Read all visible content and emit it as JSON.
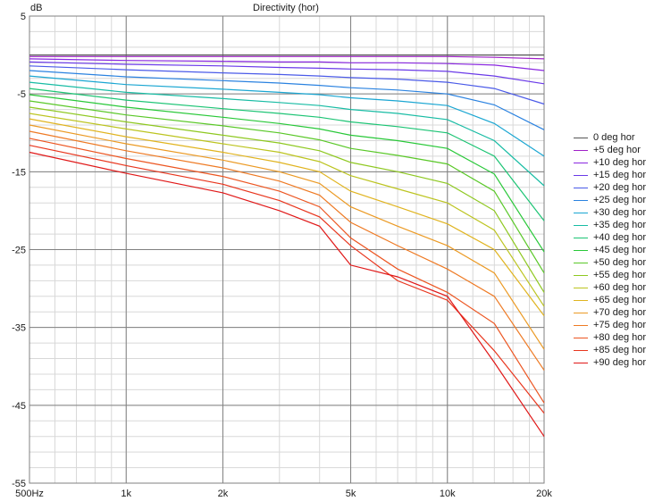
{
  "chart_data": {
    "type": "line",
    "title": "Directivity (hor)",
    "ylabel": "dB",
    "ylim": [
      -55,
      5
    ],
    "xlim": [
      500,
      20000
    ],
    "x_scale": "log",
    "y_ticks": [
      5,
      -5,
      -15,
      -25,
      -35,
      -45,
      -55
    ],
    "y_tick_labels": [
      "5",
      "-5",
      "-15",
      "-25",
      "-35",
      "-45",
      "-55"
    ],
    "x_ticks": [
      500,
      1000,
      2000,
      5000,
      10000,
      20000
    ],
    "x_tick_labels": [
      "500Hz",
      "1k",
      "2k",
      "5k",
      "10k",
      "20k"
    ],
    "grid": true,
    "legend_position": "right",
    "x": [
      500,
      1000,
      2000,
      3000,
      4000,
      5000,
      7000,
      10000,
      14000,
      20000
    ],
    "series": [
      {
        "name": "0 deg hor",
        "color": "#555555",
        "values": [
          0,
          0,
          0,
          0,
          0,
          0,
          0,
          0,
          0,
          0
        ]
      },
      {
        "name": "+5 deg hor",
        "color": "#a020c8",
        "values": [
          -0.2,
          -0.2,
          -0.2,
          -0.2,
          -0.2,
          -0.2,
          -0.2,
          -0.2,
          -0.3,
          -0.5
        ]
      },
      {
        "name": "+10 deg hor",
        "color": "#8a28e0",
        "values": [
          -0.5,
          -0.7,
          -0.8,
          -0.9,
          -0.9,
          -1.0,
          -1.0,
          -1.1,
          -1.3,
          -2.0
        ]
      },
      {
        "name": "+15 deg hor",
        "color": "#6a3ae8",
        "values": [
          -0.9,
          -1.2,
          -1.4,
          -1.6,
          -1.7,
          -1.8,
          -1.9,
          -2.1,
          -2.7,
          -3.7
        ]
      },
      {
        "name": "+20 deg hor",
        "color": "#4a5ae8",
        "values": [
          -1.4,
          -1.9,
          -2.3,
          -2.5,
          -2.7,
          -2.9,
          -3.1,
          -3.5,
          -4.3,
          -6.3
        ]
      },
      {
        "name": "+25 deg hor",
        "color": "#2a82e0",
        "values": [
          -2.0,
          -2.8,
          -3.3,
          -3.6,
          -3.9,
          -4.2,
          -4.5,
          -5.0,
          -6.4,
          -9.6
        ]
      },
      {
        "name": "+30 deg hor",
        "color": "#1aa6d2",
        "values": [
          -2.7,
          -3.8,
          -4.4,
          -4.8,
          -5.1,
          -5.5,
          -5.9,
          -6.5,
          -8.8,
          -13.0
        ]
      },
      {
        "name": "+35 deg hor",
        "color": "#18bca4",
        "values": [
          -3.5,
          -4.8,
          -5.6,
          -6.1,
          -6.5,
          -7.0,
          -7.5,
          -8.3,
          -11.0,
          -16.8
        ]
      },
      {
        "name": "+40 deg hor",
        "color": "#1cc474",
        "values": [
          -4.3,
          -5.8,
          -6.9,
          -7.5,
          -8.0,
          -8.6,
          -9.2,
          -10.0,
          -13.0,
          -21.3
        ]
      },
      {
        "name": "+45 deg hor",
        "color": "#28c838",
        "values": [
          -5.1,
          -6.7,
          -8.0,
          -8.8,
          -9.5,
          -10.3,
          -11.0,
          -12.0,
          -15.3,
          -25.3
        ]
      },
      {
        "name": "+50 deg hor",
        "color": "#5ac828",
        "values": [
          -5.9,
          -7.7,
          -9.1,
          -10.0,
          -10.9,
          -12.0,
          -12.9,
          -14.0,
          -17.5,
          -28.0
        ]
      },
      {
        "name": "+55 deg hor",
        "color": "#8ec820",
        "values": [
          -6.7,
          -8.6,
          -10.3,
          -11.3,
          -12.3,
          -13.8,
          -15.0,
          -16.5,
          -20.0,
          -30.5
        ]
      },
      {
        "name": "+60 deg hor",
        "color": "#bcc420",
        "values": [
          -7.5,
          -9.5,
          -11.4,
          -12.5,
          -13.7,
          -15.5,
          -17.2,
          -19.0,
          -22.5,
          -32.3
        ]
      },
      {
        "name": "+65 deg hor",
        "color": "#e0b420",
        "values": [
          -8.2,
          -10.5,
          -12.5,
          -13.8,
          -15.0,
          -17.5,
          -19.5,
          -21.7,
          -25.0,
          -33.5
        ]
      },
      {
        "name": "+70 deg hor",
        "color": "#eb9a24",
        "values": [
          -9.0,
          -11.4,
          -13.5,
          -15.0,
          -16.5,
          -19.5,
          -22.0,
          -24.5,
          -28.0,
          -37.8
        ]
      },
      {
        "name": "+75 deg hor",
        "color": "#ee7a24",
        "values": [
          -9.8,
          -12.3,
          -14.5,
          -16.2,
          -18.0,
          -21.5,
          -24.5,
          -27.5,
          -31.0,
          -40.5
        ]
      },
      {
        "name": "+80 deg hor",
        "color": "#ec5622",
        "values": [
          -10.7,
          -13.3,
          -15.6,
          -17.5,
          -19.5,
          -23.5,
          -27.5,
          -30.5,
          -34.5,
          -44.7
        ]
      },
      {
        "name": "+85 deg hor",
        "color": "#e8361e",
        "values": [
          -11.6,
          -14.2,
          -16.6,
          -18.7,
          -20.8,
          -24.5,
          -29.0,
          -31.5,
          -38.0,
          -46.0
        ]
      },
      {
        "name": "+90 deg hor",
        "color": "#e01818",
        "values": [
          -12.5,
          -15.2,
          -17.7,
          -20.0,
          -22.0,
          -27.0,
          -28.5,
          -31.0,
          -39.5,
          -49.0
        ]
      }
    ]
  }
}
